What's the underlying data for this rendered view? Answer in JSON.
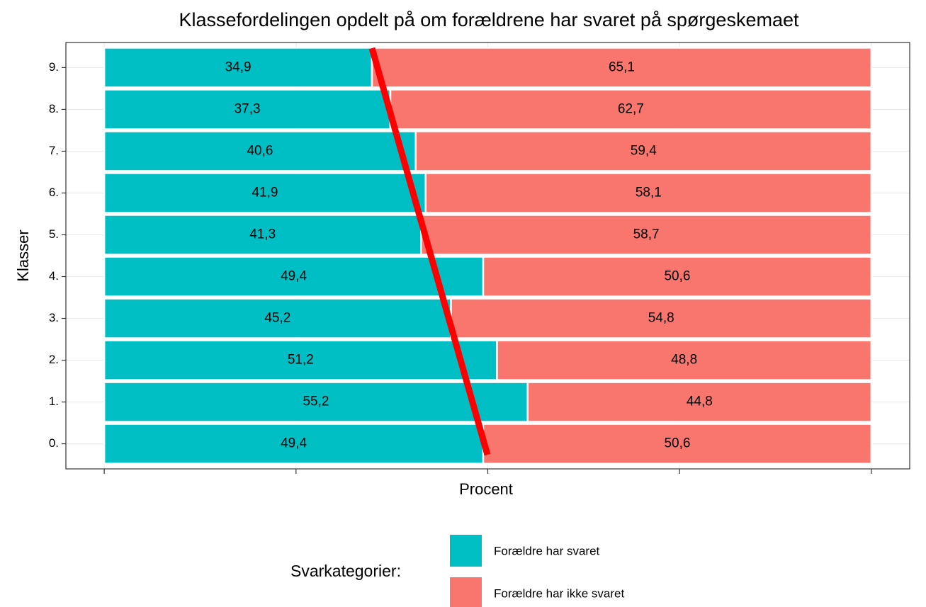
{
  "chart_data": {
    "type": "stacked_barh",
    "title": "Klassefordelingen opdelt på om forældrene har svaret på spørgeskemaet",
    "x_label": "Procent",
    "y_label": "Klasser",
    "legend_title": "Svarkategorier:",
    "legend_position": "bottom",
    "categories": [
      "0.",
      "1.",
      "2.",
      "3.",
      "4.",
      "5.",
      "6.",
      "7.",
      "8.",
      "9."
    ],
    "series": [
      {
        "name": "Forældre har svaret",
        "color": "#00BFC4",
        "values": [
          49.4,
          55.2,
          51.2,
          45.2,
          49.4,
          41.3,
          41.9,
          40.6,
          37.3,
          34.9
        ],
        "value_labels": [
          "49,4",
          "55,2",
          "51,2",
          "45,2",
          "49,4",
          "41,3",
          "41,9",
          "40,6",
          "37,3",
          "34,9"
        ]
      },
      {
        "name": "Forældre har ikke svaret",
        "color": "#F8766D",
        "values": [
          50.6,
          44.8,
          48.8,
          54.8,
          50.6,
          58.7,
          58.1,
          59.4,
          62.7,
          65.1
        ],
        "value_labels": [
          "50,6",
          "44,8",
          "48,8",
          "54,8",
          "50,6",
          "58,7",
          "58,1",
          "59,4",
          "62,7",
          "65,1"
        ]
      }
    ],
    "xlim": [
      -5,
      105
    ],
    "xticks": [
      0,
      25,
      50,
      75,
      100
    ],
    "grid": true
  }
}
